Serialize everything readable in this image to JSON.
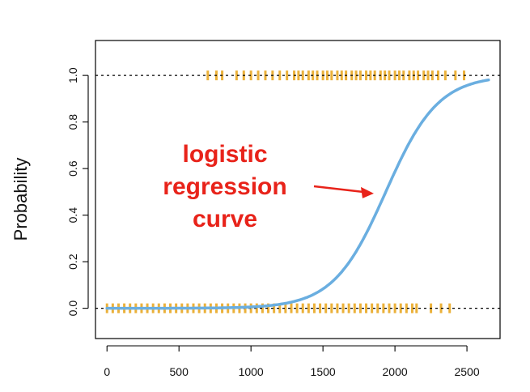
{
  "chart_data": {
    "type": "scatter",
    "title": "",
    "xlabel": "",
    "ylabel": "Probability",
    "xlim": [
      -80,
      2730
    ],
    "ylim": [
      -0.13,
      1.15
    ],
    "x_ticks": [
      0,
      500,
      1000,
      1500,
      2000,
      2500
    ],
    "y_ticks": [
      0.0,
      0.2,
      0.4,
      0.6,
      0.8,
      1.0
    ],
    "x_tick_labels": [
      "0",
      "500",
      "1000",
      "1500",
      "2000",
      "2500"
    ],
    "y_tick_labels": [
      "0.0",
      "0.2",
      "0.4",
      "0.6",
      "0.8",
      "1.0"
    ],
    "grid": false,
    "reference_lines": [
      {
        "y": 0.0,
        "style": "dotted",
        "color": "#000000"
      },
      {
        "y": 1.0,
        "style": "dotted",
        "color": "#000000"
      }
    ],
    "series": [
      {
        "type": "rug",
        "y": 0,
        "color": "#e8a317",
        "x": [
          0,
          40,
          80,
          120,
          160,
          200,
          240,
          280,
          320,
          360,
          400,
          440,
          480,
          520,
          560,
          600,
          640,
          680,
          720,
          760,
          800,
          840,
          880,
          920,
          960,
          1000,
          1040,
          1080,
          1120,
          1160,
          1200,
          1240,
          1280,
          1320,
          1360,
          1400,
          1440,
          1480,
          1520,
          1560,
          1600,
          1640,
          1680,
          1720,
          1760,
          1800,
          1840,
          1880,
          1920,
          1960,
          2000,
          2040,
          2080,
          2120,
          2150,
          2250,
          2320,
          2380
        ]
      },
      {
        "type": "rug",
        "y": 1,
        "color": "#e8a317",
        "x": [
          700,
          760,
          800,
          900,
          950,
          1000,
          1050,
          1100,
          1150,
          1200,
          1250,
          1300,
          1330,
          1360,
          1400,
          1430,
          1460,
          1500,
          1530,
          1560,
          1600,
          1630,
          1660,
          1700,
          1730,
          1760,
          1800,
          1830,
          1860,
          1900,
          1930,
          1960,
          2000,
          2030,
          2060,
          2100,
          2130,
          2160,
          2200,
          2230,
          2260,
          2300,
          2350,
          2420,
          2480
        ]
      },
      {
        "type": "line",
        "model": "logistic",
        "intercept": -10.65,
        "slope": 0.0055,
        "x_range": [
          0,
          2650
        ],
        "color": "#6aaee0"
      }
    ],
    "annotations": [
      {
        "text_lines": [
          "logistic",
          "regression",
          "curve"
        ],
        "color": "#e8231a",
        "arrow_to": {
          "x": 1870,
          "y": 0.5
        }
      }
    ]
  }
}
